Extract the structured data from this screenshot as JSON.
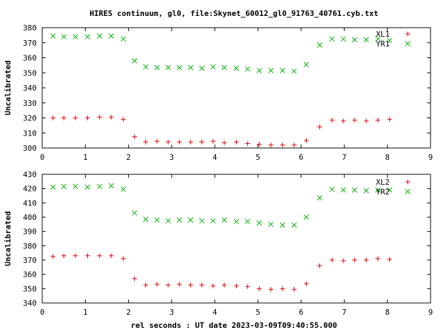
{
  "chart_data": [
    {
      "type": "scatter",
      "title": "HIRES continuum, gl0, file:Skynet_60012_gl0_91763_40761.cyb.txt",
      "xlabel": "",
      "ylabel": "Uncalibrated",
      "xlim": [
        0,
        9
      ],
      "ylim": [
        300,
        380
      ],
      "xticks": [
        0,
        1,
        2,
        3,
        4,
        5,
        6,
        7,
        8,
        9
      ],
      "yticks": [
        300,
        310,
        320,
        330,
        340,
        350,
        360,
        370,
        380
      ],
      "grid": false,
      "legend_position": "top-right",
      "series": [
        {
          "name": "XL1",
          "marker": "plus",
          "color": "#e00000",
          "x": [
            0.25,
            0.5,
            0.77,
            1.05,
            1.33,
            1.6,
            1.88,
            2.14,
            2.4,
            2.66,
            2.92,
            3.18,
            3.44,
            3.7,
            3.96,
            4.22,
            4.5,
            4.76,
            5.03,
            5.3,
            5.57,
            5.84,
            6.12,
            6.43,
            6.72,
            6.98,
            7.24,
            7.51,
            7.78,
            8.05
          ],
          "y": [
            320,
            320,
            320,
            320,
            320.5,
            320.5,
            319,
            307.5,
            304,
            304.5,
            304,
            304,
            304,
            304,
            304.5,
            303.5,
            304,
            303,
            302.5,
            302,
            302,
            302,
            305,
            314,
            318.5,
            318,
            318.5,
            318,
            318.5,
            319
          ]
        },
        {
          "name": "YR1",
          "marker": "cross",
          "color": "#00b000",
          "x": [
            0.25,
            0.5,
            0.77,
            1.05,
            1.33,
            1.6,
            1.88,
            2.14,
            2.4,
            2.66,
            2.92,
            3.18,
            3.44,
            3.7,
            3.96,
            4.22,
            4.5,
            4.76,
            5.03,
            5.3,
            5.57,
            5.84,
            6.12,
            6.43,
            6.72,
            6.98,
            7.24,
            7.51,
            7.78,
            8.05
          ],
          "y": [
            374.5,
            374,
            374,
            374,
            374.5,
            374.5,
            372.5,
            358,
            354,
            353.5,
            353.5,
            353.5,
            353.5,
            353,
            354,
            353.5,
            353,
            352.5,
            351.5,
            351.5,
            351.5,
            351,
            355.5,
            368.5,
            372.5,
            372.5,
            372,
            372,
            372.5,
            371.5
          ]
        }
      ]
    },
    {
      "type": "scatter",
      "title": "",
      "xlabel": "rel seconds : UT date 2023-03-09T09:40:55.000",
      "ylabel": "Uncalibrated",
      "xlim": [
        0,
        9
      ],
      "ylim": [
        340,
        430
      ],
      "xticks": [
        0,
        1,
        2,
        3,
        4,
        5,
        6,
        7,
        8,
        9
      ],
      "yticks": [
        340,
        350,
        360,
        370,
        380,
        390,
        400,
        410,
        420,
        430
      ],
      "grid": false,
      "legend_position": "top-right",
      "series": [
        {
          "name": "XL2",
          "marker": "plus",
          "color": "#e00000",
          "x": [
            0.25,
            0.5,
            0.77,
            1.05,
            1.33,
            1.6,
            1.88,
            2.14,
            2.4,
            2.66,
            2.92,
            3.18,
            3.44,
            3.7,
            3.96,
            4.22,
            4.5,
            4.76,
            5.03,
            5.3,
            5.57,
            5.84,
            6.12,
            6.43,
            6.72,
            6.98,
            7.24,
            7.51,
            7.78,
            8.05
          ],
          "y": [
            372.5,
            373,
            373,
            373,
            373,
            373,
            371,
            357,
            352.5,
            353,
            352.5,
            353,
            352.5,
            352.5,
            352,
            352.5,
            352,
            351.5,
            350,
            349.5,
            350,
            349.5,
            353.5,
            366,
            370,
            369.5,
            370,
            370,
            371,
            370.5
          ]
        },
        {
          "name": "YR2",
          "marker": "cross",
          "color": "#00b000",
          "x": [
            0.25,
            0.5,
            0.77,
            1.05,
            1.33,
            1.6,
            1.88,
            2.14,
            2.4,
            2.66,
            2.92,
            3.18,
            3.44,
            3.7,
            3.96,
            4.22,
            4.5,
            4.76,
            5.03,
            5.3,
            5.57,
            5.84,
            6.12,
            6.43,
            6.72,
            6.98,
            7.24,
            7.51,
            7.78,
            8.05
          ],
          "y": [
            421,
            421.5,
            421.5,
            421,
            421.5,
            422,
            419.5,
            403,
            398.5,
            398,
            397.5,
            398,
            398,
            397.5,
            397.5,
            398,
            397,
            397,
            396,
            395,
            394.5,
            394.5,
            400,
            413.5,
            419.5,
            419,
            419,
            418.5,
            419,
            419
          ]
        }
      ]
    }
  ]
}
